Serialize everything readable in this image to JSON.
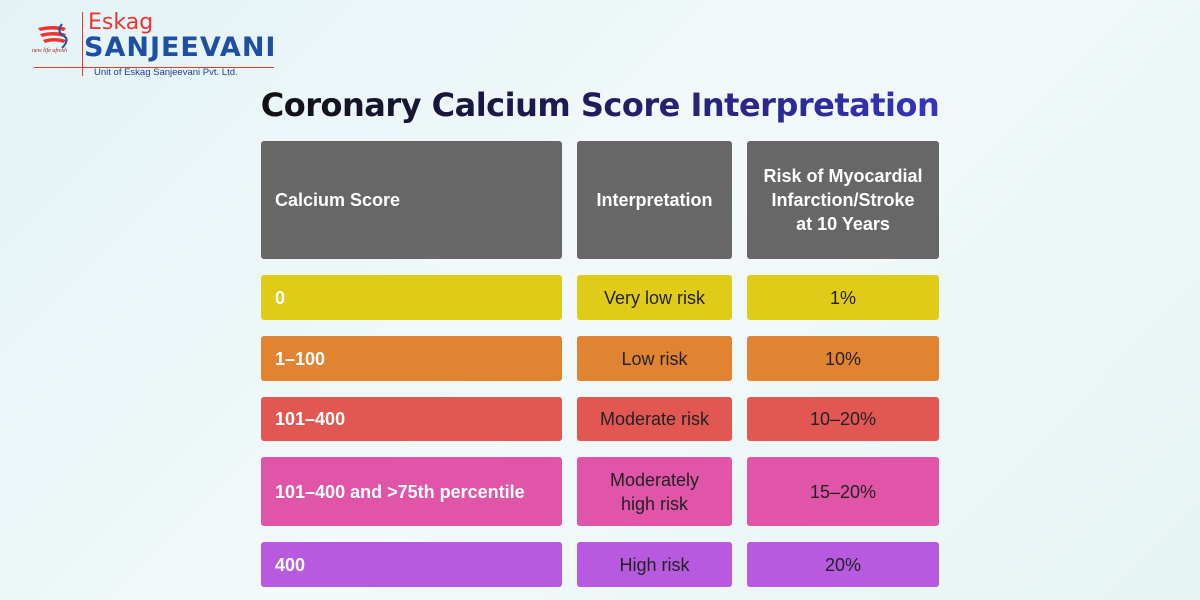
{
  "logo": {
    "brand_top": "Eskag",
    "brand_main": "SANJEEVANI",
    "tagline": "new life afresh",
    "subtitle": "Unit of Eskag Sanjeevani Pvt. Ltd."
  },
  "title": "Coronary Calcium Score Interpretation",
  "table": {
    "headers": [
      "Calcium Score",
      "Interpretation",
      "Risk of Myocardial Infarction/Stroke at 10 Years"
    ],
    "rows": [
      {
        "score": "0",
        "interpretation": "Very low risk",
        "risk": "1%",
        "color": "#dfcb18"
      },
      {
        "score": "1–100",
        "interpretation": "Low risk",
        "risk": "10%",
        "color": "#e08432"
      },
      {
        "score": "101–400",
        "interpretation": "Moderate risk",
        "risk": "10–20%",
        "color": "#e35752"
      },
      {
        "score": "101–400 and >75th percentile",
        "interpretation": "Moderately high risk",
        "risk": "15–20%",
        "color": "#e055a8"
      },
      {
        "score": "400",
        "interpretation": "High risk",
        "risk": "20%",
        "color": "#b85ae0"
      }
    ]
  }
}
